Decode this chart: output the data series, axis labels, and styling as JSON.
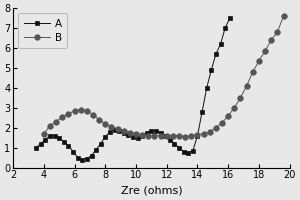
{
  "title": "",
  "xlabel": "Zre (ohms)",
  "ylabel": "",
  "xlim": [
    2,
    20
  ],
  "ylim": [
    0,
    8
  ],
  "xticks": [
    2,
    4,
    6,
    8,
    10,
    12,
    14,
    16,
    18,
    20
  ],
  "yticks": [
    0,
    1,
    2,
    3,
    4,
    5,
    6,
    7,
    8
  ],
  "series_A": {
    "label": "A",
    "color": "#111111",
    "marker": "s",
    "x": [
      3.5,
      3.8,
      4.1,
      4.4,
      4.7,
      5.0,
      5.3,
      5.6,
      5.9,
      6.2,
      6.5,
      6.8,
      7.1,
      7.4,
      7.7,
      8.0,
      8.3,
      8.6,
      8.9,
      9.2,
      9.5,
      9.8,
      10.1,
      10.4,
      10.7,
      11.0,
      11.3,
      11.6,
      11.9,
      12.2,
      12.5,
      12.8,
      13.1,
      13.4,
      13.7,
      14.0,
      14.3,
      14.6,
      14.9,
      15.2,
      15.5,
      15.8,
      16.1
    ],
    "y": [
      1.0,
      1.2,
      1.4,
      1.6,
      1.6,
      1.5,
      1.3,
      1.1,
      0.8,
      0.5,
      0.4,
      0.45,
      0.6,
      0.9,
      1.2,
      1.55,
      1.8,
      1.9,
      1.85,
      1.75,
      1.65,
      1.55,
      1.5,
      1.6,
      1.75,
      1.85,
      1.85,
      1.75,
      1.6,
      1.4,
      1.2,
      1.0,
      0.8,
      0.75,
      0.85,
      1.6,
      2.8,
      4.0,
      4.9,
      5.7,
      6.2,
      7.0,
      7.5
    ]
  },
  "series_B": {
    "label": "B",
    "color": "#555555",
    "marker": "o",
    "x": [
      4.0,
      4.4,
      4.8,
      5.2,
      5.6,
      6.0,
      6.4,
      6.8,
      7.2,
      7.6,
      8.0,
      8.4,
      8.8,
      9.2,
      9.6,
      10.0,
      10.4,
      10.8,
      11.2,
      11.6,
      12.0,
      12.4,
      12.8,
      13.2,
      13.6,
      14.0,
      14.4,
      14.8,
      15.2,
      15.6,
      16.0,
      16.4,
      16.8,
      17.2,
      17.6,
      18.0,
      18.4,
      18.8,
      19.2,
      19.6
    ],
    "y": [
      1.7,
      2.1,
      2.3,
      2.55,
      2.7,
      2.85,
      2.9,
      2.85,
      2.65,
      2.4,
      2.2,
      2.05,
      1.95,
      1.85,
      1.75,
      1.7,
      1.65,
      1.6,
      1.6,
      1.6,
      1.6,
      1.6,
      1.6,
      1.55,
      1.6,
      1.65,
      1.7,
      1.8,
      2.0,
      2.25,
      2.6,
      3.0,
      3.5,
      4.1,
      4.8,
      5.35,
      5.85,
      6.4,
      6.8,
      7.6
    ]
  },
  "background_color": "#e8e8e8",
  "plot_bg_color": "#e8e8e8",
  "line_color": "#000000",
  "legend_line_color": "#aaaaaa"
}
